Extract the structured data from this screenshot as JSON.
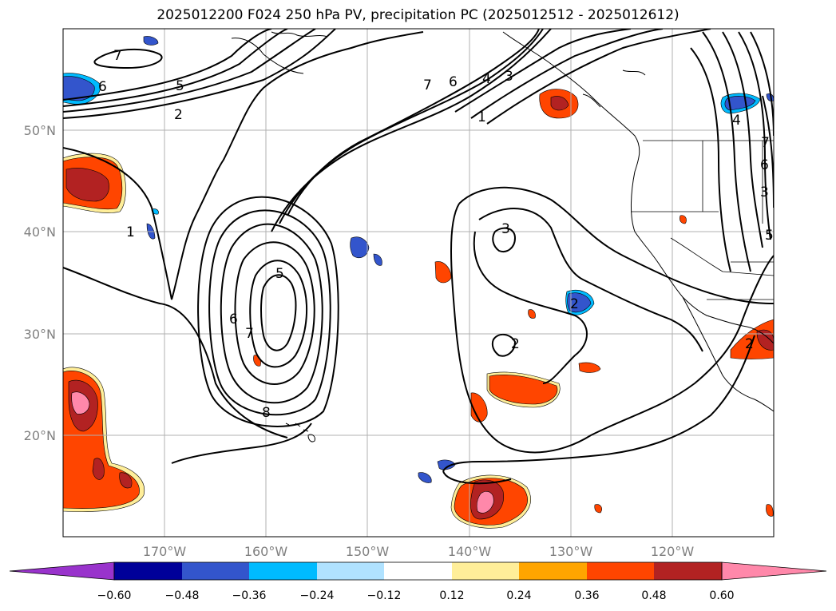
{
  "title": "2025012200 F024 250 hPa PV, precipitation PC (2025012512 - 2025012612)",
  "lat_labels": [
    "50°N",
    "40°N",
    "30°N",
    "20°N"
  ],
  "lon_labels": [
    "170°W",
    "160°W",
    "150°W",
    "140°W",
    "130°W",
    "120°W"
  ],
  "colorbar": {
    "colors": [
      "#9933cc",
      "#000099",
      "#3355cc",
      "#00bbff",
      "#b0e2ff",
      "#ffffff",
      "#ffee99",
      "#ffa500",
      "#ff4500",
      "#b22222",
      "#ff88aa"
    ],
    "ticks": [
      "−0.60",
      "−0.48",
      "−0.36",
      "−0.24",
      "−0.12",
      "0.12",
      "0.24",
      "0.36",
      "0.48",
      "0.60"
    ]
  },
  "contour_labels": [
    "7",
    "6",
    "5",
    "2",
    "1",
    "7",
    "6",
    "4",
    "3",
    "1",
    "3",
    "5",
    "6",
    "7",
    "2",
    "2",
    "8",
    "4",
    "7",
    "6",
    "5",
    "3",
    "2"
  ]
}
